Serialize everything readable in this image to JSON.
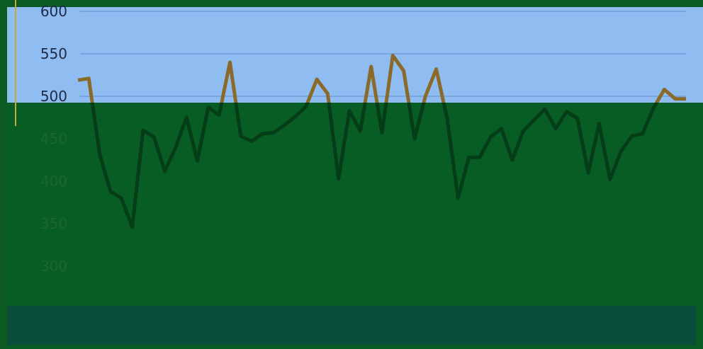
{
  "theme": {
    "sky": "#8fbdf2",
    "ground": "#075d24",
    "band": "#0a4d3a",
    "line": "#8a6a2b",
    "grid": "#6b96d6",
    "left_rule": "#c9a53a"
  },
  "chart_data": {
    "type": "line",
    "title": "",
    "xlabel": "",
    "ylabel": "",
    "ylim": [
      270,
      600
    ],
    "y_ticks": [
      600,
      550,
      500,
      450,
      400,
      350,
      300
    ],
    "grid": true,
    "series": [
      {
        "values": [
          519,
          521,
          432,
          388,
          380,
          346,
          460,
          452,
          412,
          440,
          475,
          424,
          487,
          478,
          540,
          453,
          447,
          456,
          457,
          466,
          476,
          488,
          520,
          503,
          403,
          483,
          459,
          535,
          457,
          548,
          530,
          450,
          500,
          532,
          474,
          380,
          428,
          428,
          452,
          462,
          425,
          459,
          472,
          485,
          462,
          482,
          474,
          410,
          468,
          402,
          435,
          453,
          456,
          486,
          508,
          497,
          497
        ]
      }
    ]
  }
}
